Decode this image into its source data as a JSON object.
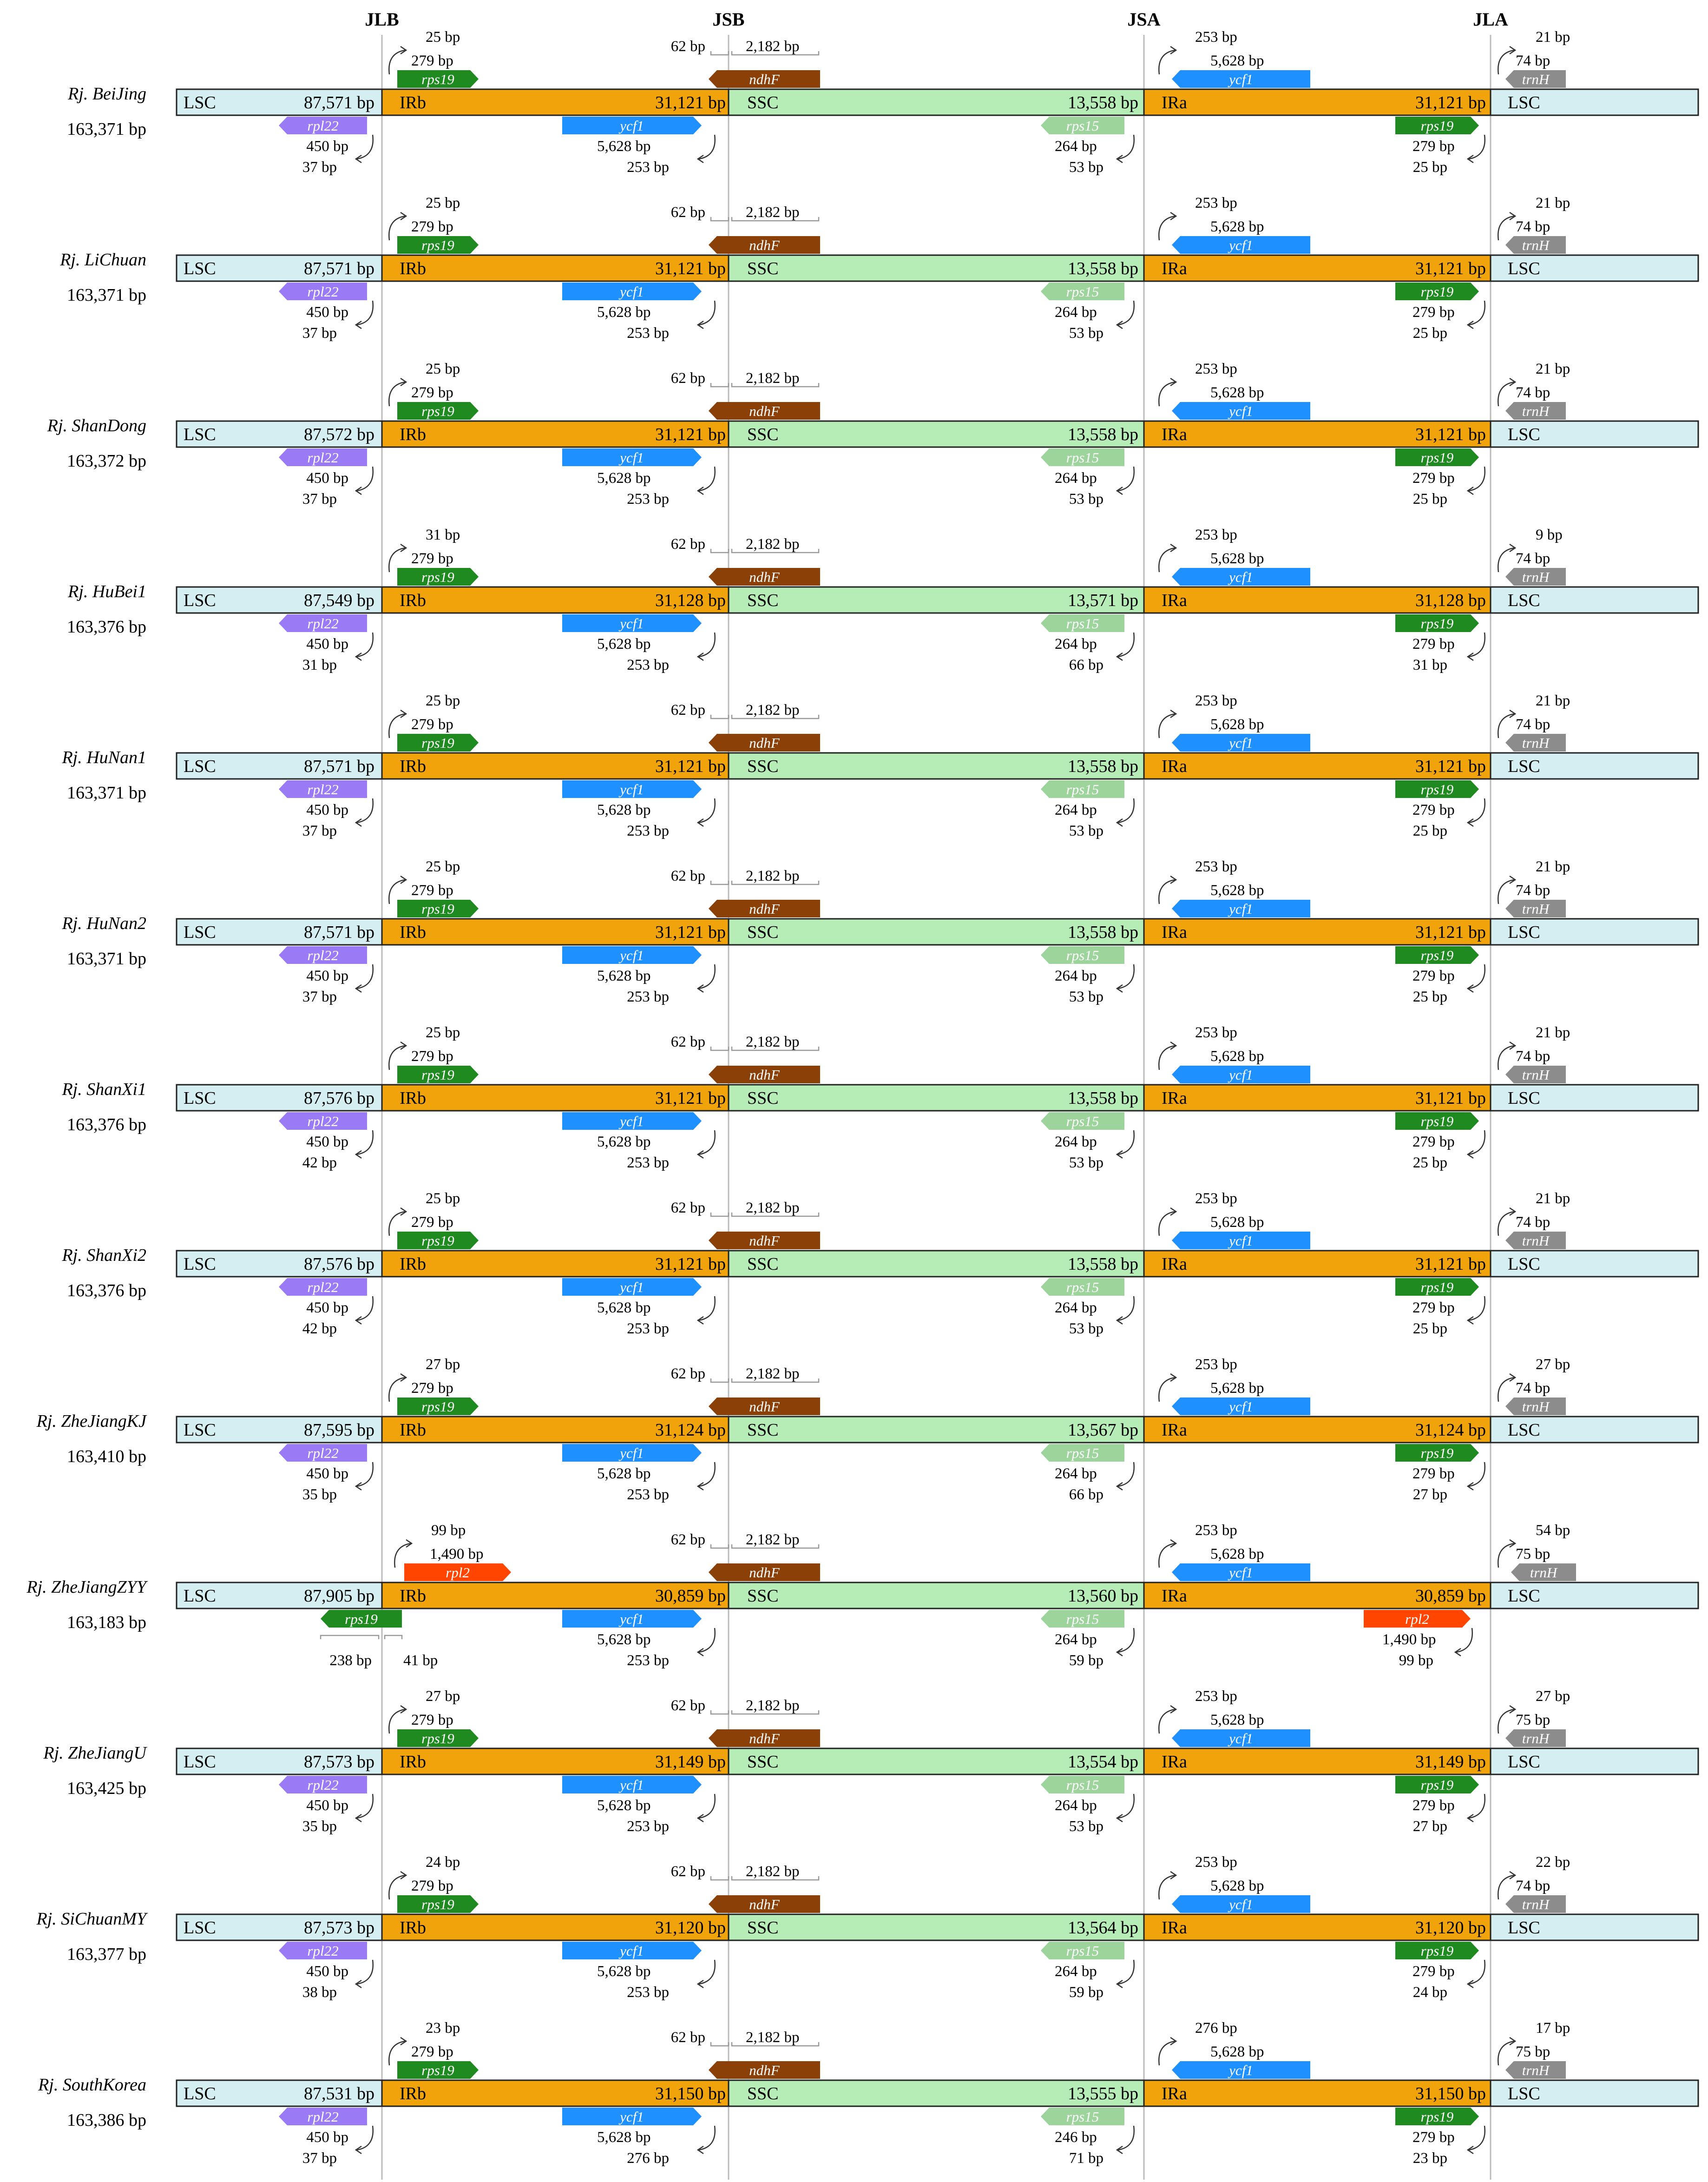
{
  "junctions": [
    "JLB",
    "JSB",
    "JSA",
    "JLA"
  ],
  "colors": {
    "LSC": "#d4eef1",
    "IR": "#f0a30a",
    "SSC": "#b6edb6",
    "rps19": "#1f8a1f",
    "ndhF": "#8b4008",
    "ycf1": "#1e90ff",
    "rpl22": "#9b7bf5",
    "rps15": "#9cd49c",
    "trnH": "#8c8c8c",
    "rpl2": "#ff4500"
  },
  "rows": [
    {
      "species": "Rj. BeiJing",
      "total": "163,371 bp",
      "lsc": "87,571 bp",
      "ir": "31,121 bp",
      "ssc": "13,558 bp",
      "jlb_top": "25 bp",
      "jlb_bot": "37 bp",
      "jsa_bot": "53 bp",
      "jla_top": "21 bp",
      "jla_bot": "25 bp",
      "ycf1_top": "253 bp",
      "ycf1_bot": "253 bp",
      "trnh_len": "74 bp",
      "rps15_len": "264 bp"
    },
    {
      "species": "Rj. LiChuan",
      "total": "163,371 bp",
      "lsc": "87,571 bp",
      "ir": "31,121 bp",
      "ssc": "13,558 bp",
      "jlb_top": "25 bp",
      "jlb_bot": "37 bp",
      "jsa_bot": "53 bp",
      "jla_top": "21 bp",
      "jla_bot": "25 bp",
      "ycf1_top": "253 bp",
      "ycf1_bot": "253 bp",
      "trnh_len": "74 bp",
      "rps15_len": "264 bp"
    },
    {
      "species": "Rj. ShanDong",
      "total": "163,372 bp",
      "lsc": "87,572 bp",
      "ir": "31,121 bp",
      "ssc": "13,558 bp",
      "jlb_top": "25 bp",
      "jlb_bot": "37 bp",
      "jsa_bot": "53 bp",
      "jla_top": "21 bp",
      "jla_bot": "25 bp",
      "ycf1_top": "253 bp",
      "ycf1_bot": "253 bp",
      "trnh_len": "74 bp",
      "rps15_len": "264 bp"
    },
    {
      "species": "Rj. HuBei1",
      "total": "163,376 bp",
      "lsc": "87,549 bp",
      "ir": "31,128 bp",
      "ssc": "13,571 bp",
      "jlb_top": "31 bp",
      "jlb_bot": "31 bp",
      "jsa_bot": "66 bp",
      "jla_top": "9 bp",
      "jla_bot": "31 bp",
      "ycf1_top": "253 bp",
      "ycf1_bot": "253 bp",
      "trnh_len": "74 bp",
      "rps15_len": "264 bp"
    },
    {
      "species": "Rj. HuNan1",
      "total": "163,371 bp",
      "lsc": "87,571 bp",
      "ir": "31,121 bp",
      "ssc": "13,558 bp",
      "jlb_top": "25 bp",
      "jlb_bot": "37 bp",
      "jsa_bot": "53 bp",
      "jla_top": "21 bp",
      "jla_bot": "25 bp",
      "ycf1_top": "253 bp",
      "ycf1_bot": "253 bp",
      "trnh_len": "74 bp",
      "rps15_len": "264 bp"
    },
    {
      "species": "Rj. HuNan2",
      "total": "163,371 bp",
      "lsc": "87,571 bp",
      "ir": "31,121 bp",
      "ssc": "13,558 bp",
      "jlb_top": "25 bp",
      "jlb_bot": "37 bp",
      "jsa_bot": "53 bp",
      "jla_top": "21 bp",
      "jla_bot": "25 bp",
      "ycf1_top": "253 bp",
      "ycf1_bot": "253 bp",
      "trnh_len": "74 bp",
      "rps15_len": "264 bp"
    },
    {
      "species": "Rj. ShanXi1",
      "total": "163,376 bp",
      "lsc": "87,576 bp",
      "ir": "31,121 bp",
      "ssc": "13,558 bp",
      "jlb_top": "25 bp",
      "jlb_bot": "42 bp",
      "jsa_bot": "53 bp",
      "jla_top": "21 bp",
      "jla_bot": "25 bp",
      "ycf1_top": "253 bp",
      "ycf1_bot": "253 bp",
      "trnh_len": "74 bp",
      "rps15_len": "264 bp"
    },
    {
      "species": "Rj. ShanXi2",
      "total": "163,376 bp",
      "lsc": "87,576 bp",
      "ir": "31,121 bp",
      "ssc": "13,558 bp",
      "jlb_top": "25 bp",
      "jlb_bot": "42 bp",
      "jsa_bot": "53 bp",
      "jla_top": "21 bp",
      "jla_bot": "25 bp",
      "ycf1_top": "253 bp",
      "ycf1_bot": "253 bp",
      "trnh_len": "74 bp",
      "rps15_len": "264 bp"
    },
    {
      "species": "Rj. ZheJiangKJ",
      "total": "163,410 bp",
      "lsc": "87,595 bp",
      "ir": "31,124 bp",
      "ssc": "13,567 bp",
      "jlb_top": "27 bp",
      "jlb_bot": "35 bp",
      "jsa_bot": "66 bp",
      "jla_top": "27 bp",
      "jla_bot": "27 bp",
      "ycf1_top": "253 bp",
      "ycf1_bot": "253 bp",
      "trnh_len": "74 bp",
      "rps15_len": "264 bp"
    },
    {
      "species": "Rj. ZheJiangZYY",
      "total": "163,183 bp",
      "lsc": "87,905 bp",
      "ir": "30,859 bp",
      "ssc": "13,560 bp",
      "jlb_top": "99 bp",
      "jlb_top_len": "1,490 bp",
      "jlb_bot": "41 bp",
      "jlb_bot_len": "238 bp",
      "jsa_bot": "59 bp",
      "jla_top": "54 bp",
      "jla_bot": "99 bp",
      "jla_bot_len": "1,490 bp",
      "ycf1_top": "253 bp",
      "ycf1_bot": "253 bp",
      "trnh_len": "75 bp",
      "rps15_len": "264 bp",
      "special": true
    },
    {
      "species": "Rj. ZheJiangU",
      "total": "163,425 bp",
      "lsc": "87,573 bp",
      "ir": "31,149 bp",
      "ssc": "13,554 bp",
      "jlb_top": "27 bp",
      "jlb_bot": "35 bp",
      "jsa_bot": "53 bp",
      "jla_top": "27 bp",
      "jla_bot": "27 bp",
      "ycf1_top": "253 bp",
      "ycf1_bot": "253 bp",
      "trnh_len": "75 bp",
      "rps15_len": "264 bp"
    },
    {
      "species": "Rj. SiChuanMY",
      "total": "163,377 bp",
      "lsc": "87,573 bp",
      "ir": "31,120 bp",
      "ssc": "13,564 bp",
      "jlb_top": "24 bp",
      "jlb_bot": "38 bp",
      "jsa_bot": "59 bp",
      "jla_top": "22 bp",
      "jla_bot": "24 bp",
      "ycf1_top": "253 bp",
      "ycf1_bot": "253 bp",
      "trnh_len": "74 bp",
      "rps15_len": "264 bp"
    },
    {
      "species": "Rj. SouthKorea",
      "total": "163,386 bp",
      "lsc": "87,531 bp",
      "ir": "31,150 bp",
      "ssc": "13,555 bp",
      "jlb_top": "23 bp",
      "jlb_bot": "37 bp",
      "jsa_bot": "71 bp",
      "jla_top": "17 bp",
      "jla_bot": "23 bp",
      "ycf1_top": "276 bp",
      "ycf1_bot": "276 bp",
      "trnh_len": "75 bp",
      "rps15_len": "246 bp"
    }
  ],
  "common": {
    "region_lsc": "LSC",
    "region_irb": "IRb",
    "region_ssc": "SSC",
    "region_ira": "IRa",
    "rps19_name": "rps19",
    "rps19_len": "279 bp",
    "ndhf_name": "ndhF",
    "ndhf_offset": "62 bp",
    "ndhf_len": "2,182 bp",
    "ndhf_unit": "2,182",
    "ndhf_unit2": "bp",
    "ycf1_name": "ycf1",
    "ycf1_len": "5,628 bp",
    "trnh_name": "trnH",
    "rpl22_name": "rpl22",
    "rpl22_len": "450 bp",
    "rps15_name": "rps15",
    "rpl2_name": "rpl2"
  }
}
